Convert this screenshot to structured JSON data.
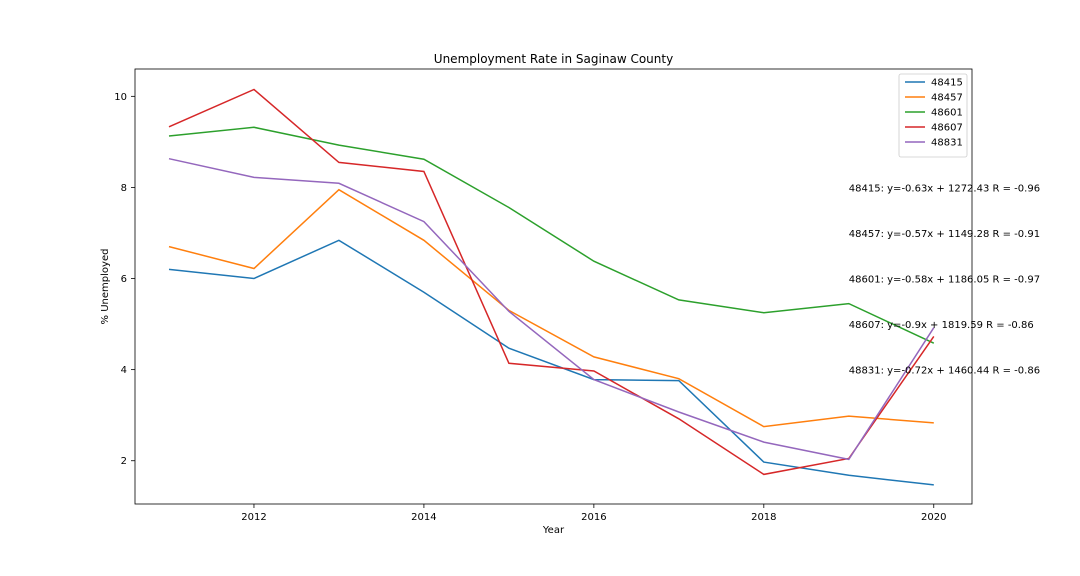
{
  "chart_data": {
    "type": "line",
    "title": "Unemployment Rate in Saginaw County",
    "xlabel": "Year",
    "ylabel": "% Unemployed",
    "xlim": [
      2010.6,
      2020.45
    ],
    "ylim": [
      1.05,
      10.6
    ],
    "xticks": [
      2012,
      2014,
      2016,
      2018,
      2020
    ],
    "yticks": [
      2,
      4,
      6,
      8,
      10
    ],
    "grid": false,
    "legend_position": "top-right",
    "x": [
      2011,
      2012,
      2013,
      2014,
      2015,
      2016,
      2017,
      2018,
      2019,
      2020
    ],
    "series": [
      {
        "name": "48415",
        "color": "#1f77b4",
        "values": [
          6.2,
          6.0,
          6.84,
          5.7,
          4.47,
          3.78,
          3.76,
          1.97,
          1.68,
          1.47
        ]
      },
      {
        "name": "48457",
        "color": "#ff7f0e",
        "values": [
          6.7,
          6.22,
          7.95,
          6.84,
          5.3,
          4.28,
          3.8,
          2.75,
          2.98,
          2.83
        ]
      },
      {
        "name": "48601",
        "color": "#2ca02c",
        "values": [
          9.13,
          9.32,
          8.93,
          8.62,
          7.56,
          6.38,
          5.53,
          5.25,
          5.45,
          4.58
        ]
      },
      {
        "name": "48607",
        "color": "#d62728",
        "values": [
          9.33,
          10.15,
          8.55,
          8.35,
          4.14,
          3.97,
          2.92,
          1.7,
          2.05,
          4.73
        ]
      },
      {
        "name": "48831",
        "color": "#9467bd",
        "values": [
          8.63,
          8.22,
          8.09,
          7.25,
          5.28,
          3.78,
          3.07,
          2.41,
          2.03,
          4.92
        ]
      }
    ],
    "annotations": [
      {
        "text": "48415: y=-0.63x + 1272.43 R = -0.96",
        "x": 2019,
        "y": 8.0
      },
      {
        "text": "48457: y=-0.57x + 1149.28 R = -0.91",
        "x": 2019,
        "y": 7.0
      },
      {
        "text": "48601: y=-0.58x + 1186.05 R = -0.97",
        "x": 2019,
        "y": 6.0
      },
      {
        "text": "48607: y=-0.9x + 1819.59 R = -0.86",
        "x": 2019,
        "y": 5.0
      },
      {
        "text": "48831: y=-0.72x + 1460.44 R = -0.86",
        "x": 2019,
        "y": 4.0
      }
    ]
  }
}
